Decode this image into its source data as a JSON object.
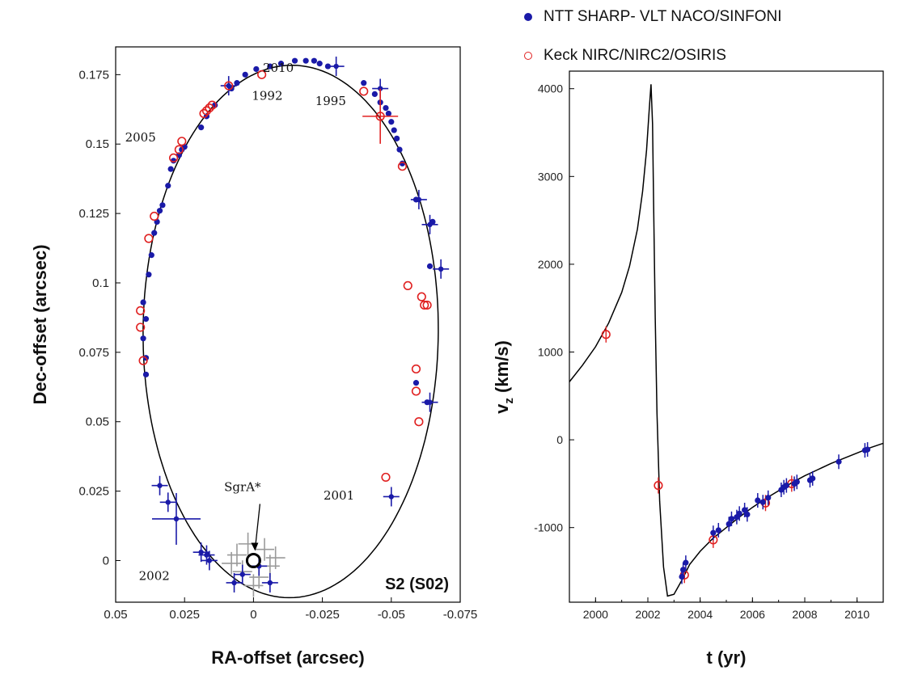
{
  "legend": [
    {
      "label": "NTT SHARP- VLT NACO/SINFONI",
      "symbol": "filled-blue-dot",
      "color": "#1a1aa8"
    },
    {
      "label": "Keck NIRC/NIRC2/OSIRIS",
      "symbol": "open-red-circle",
      "color": "#e02020"
    }
  ],
  "chart_data": [
    {
      "type": "scatter",
      "panel": "left",
      "xlabel": "RA-offset (arcsec)",
      "ylabel": "Dec-offset (arcsec)",
      "xlim": [
        0.05,
        -0.075
      ],
      "ylim": [
        -0.015,
        0.185
      ],
      "x_ticks": [
        "0.05",
        "0.025",
        "0",
        "-0.025",
        "-0.05",
        "-0.075"
      ],
      "x_tick_values": [
        0.05,
        0.025,
        0,
        -0.025,
        -0.05,
        -0.075
      ],
      "y_ticks": [
        "0",
        "0.025",
        "0.05",
        "0.075",
        "0.1",
        "0.125",
        "0.15",
        "0.175"
      ],
      "y_tick_values": [
        0,
        0.025,
        0.05,
        0.075,
        0.1,
        0.125,
        0.15,
        0.175
      ],
      "panel_label": "S2 (S02)",
      "orbit": {
        "center_x": -0.0135,
        "center_y": 0.0825,
        "semi_x": 0.0545,
        "semi_y": 0.0975,
        "rotation_deg": -12
      },
      "annotations": [
        {
          "text": "1992",
          "x": -0.005,
          "y": 0.166
        },
        {
          "text": "2010",
          "x": -0.009,
          "y": 0.176
        },
        {
          "text": "1995",
          "x": -0.028,
          "y": 0.164
        },
        {
          "text": "2005",
          "x": 0.041,
          "y": 0.151
        },
        {
          "text": "2001",
          "x": -0.031,
          "y": 0.022
        },
        {
          "text": "2002",
          "x": 0.036,
          "y": -0.007
        },
        {
          "text": "SgrA*",
          "x": 0.004,
          "y": 0.025
        }
      ],
      "sgra": {
        "x": 0.0,
        "y": 0.0
      },
      "series": [
        {
          "name": "NTT SHARP- VLT NACO/SINFONI",
          "color": "#1a1aa8",
          "marker": "dot",
          "x": [
            0.039,
            0.039,
            0.04,
            0.039,
            0.04,
            0.038,
            0.037,
            0.036,
            0.035,
            0.034,
            0.033,
            0.031,
            0.03,
            0.029,
            0.027,
            0.026,
            0.025,
            0.019,
            0.017,
            0.014,
            0.008,
            0.006,
            0.003,
            -0.001,
            -0.006,
            -0.01,
            -0.015,
            -0.019,
            -0.022,
            -0.024,
            -0.027,
            -0.04,
            -0.044,
            -0.046,
            -0.048,
            -0.049,
            -0.05,
            -0.051,
            -0.052,
            -0.053,
            -0.054,
            -0.059,
            -0.065,
            -0.064,
            -0.059,
            -0.063
          ],
          "y": [
            0.067,
            0.073,
            0.08,
            0.087,
            0.093,
            0.103,
            0.11,
            0.118,
            0.122,
            0.126,
            0.128,
            0.135,
            0.141,
            0.144,
            0.146,
            0.148,
            0.149,
            0.156,
            0.16,
            0.164,
            0.17,
            0.172,
            0.175,
            0.177,
            0.178,
            0.179,
            0.18,
            0.18,
            0.18,
            0.179,
            0.178,
            0.172,
            0.168,
            0.165,
            0.163,
            0.161,
            0.158,
            0.155,
            0.152,
            0.148,
            0.143,
            0.13,
            0.122,
            0.106,
            0.064,
            0.057
          ]
        },
        {
          "name": "NTT SHARP- VLT NACO/SINFONI (error bars)",
          "color": "#1a1aa8",
          "marker": "cross",
          "x": [
            0.009,
            -0.03,
            -0.046,
            -0.06,
            -0.064,
            -0.068,
            -0.064,
            -0.05,
            0.034,
            0.031,
            0.028,
            0.019,
            0.017,
            0.016,
            0.007,
            0.004,
            -0.002,
            -0.006
          ],
          "y": [
            0.171,
            0.178,
            0.17,
            0.13,
            0.121,
            0.105,
            0.057,
            0.023,
            0.027,
            0.021,
            0.015,
            0.003,
            0.002,
            0.0,
            -0.008,
            -0.005,
            -0.002,
            -0.008
          ]
        },
        {
          "name": "Keck NIRC/NIRC2/OSIRIS",
          "color": "#e02020",
          "marker": "open-circle",
          "x": [
            0.041,
            0.041,
            0.04,
            0.038,
            0.036,
            0.029,
            0.027,
            0.026,
            0.018,
            0.017,
            0.016,
            0.015,
            0.009,
            -0.003,
            -0.04,
            -0.046,
            -0.054,
            -0.056,
            -0.059,
            -0.059,
            -0.06,
            -0.061,
            -0.062,
            -0.063,
            -0.048
          ],
          "y": [
            0.09,
            0.084,
            0.072,
            0.116,
            0.124,
            0.145,
            0.148,
            0.151,
            0.161,
            0.162,
            0.163,
            0.164,
            0.171,
            0.175,
            0.169,
            0.16,
            0.142,
            0.099,
            0.069,
            0.061,
            0.05,
            0.095,
            0.092,
            0.092,
            0.03
          ]
        }
      ]
    },
    {
      "type": "line",
      "panel": "right",
      "xlabel": "t (yr)",
      "ylabel": "v",
      "ylabel_sub": "z",
      "ylabel_unit": "(km/s)",
      "xlim": [
        1999,
        2011
      ],
      "ylim": [
        -1850,
        4200
      ],
      "x_ticks": [
        "2000",
        "2002",
        "2004",
        "2006",
        "2008",
        "2010"
      ],
      "x_tick_values": [
        2000,
        2002,
        2004,
        2006,
        2008,
        2010
      ],
      "y_ticks": [
        "-1000",
        "0",
        "1000",
        "2000",
        "3000",
        "4000"
      ],
      "y_tick_values": [
        -1000,
        0,
        1000,
        2000,
        3000,
        4000
      ],
      "curve": {
        "x": [
          1999,
          1999.5,
          2000,
          2000.5,
          2001,
          2001.3,
          2001.6,
          2001.8,
          2001.95,
          2002.05,
          2002.12,
          2002.18,
          2002.22,
          2002.28,
          2002.35,
          2002.45,
          2002.6,
          2002.75,
          2003.0,
          2003.3,
          2003.6,
          2004,
          2004.5,
          2005,
          2005.5,
          2006,
          2006.5,
          2007,
          2007.5,
          2008,
          2008.5,
          2009,
          2009.5,
          2010,
          2010.5,
          2011
        ],
        "y": [
          660,
          850,
          1060,
          1330,
          1680,
          1980,
          2400,
          2830,
          3300,
          3750,
          4050,
          3600,
          2700,
          1400,
          300,
          -700,
          -1450,
          -1780,
          -1760,
          -1600,
          -1420,
          -1270,
          -1120,
          -1000,
          -880,
          -770,
          -670,
          -580,
          -490,
          -410,
          -340,
          -270,
          -210,
          -150,
          -90,
          -40
        ]
      },
      "series": [
        {
          "name": "Keck NIRC/NIRC2/OSIRIS",
          "color": "#e02020",
          "marker": "open-circle",
          "x": [
            2000.4,
            2002.4,
            2003.4,
            2004.5,
            2006.5,
            2007.5
          ],
          "y": [
            1200,
            -520,
            -1540,
            -1140,
            -720,
            -500
          ]
        },
        {
          "name": "NTT SHARP- VLT NACO/SINFONI",
          "color": "#1a1aa8",
          "marker": "dot",
          "x": [
            2003.3,
            2003.35,
            2003.45,
            2004.5,
            2004.7,
            2005.1,
            2005.2,
            2005.4,
            2005.5,
            2005.7,
            2005.8,
            2006.2,
            2006.4,
            2006.6,
            2007.1,
            2007.2,
            2007.3,
            2007.6,
            2007.7,
            2008.2,
            2008.3,
            2009.3,
            2010.3,
            2010.4
          ],
          "y": [
            -1560,
            -1480,
            -1400,
            -1060,
            -1030,
            -960,
            -900,
            -880,
            -840,
            -800,
            -850,
            -690,
            -710,
            -660,
            -570,
            -540,
            -520,
            -500,
            -480,
            -460,
            -440,
            -250,
            -120,
            -110
          ]
        }
      ]
    }
  ]
}
